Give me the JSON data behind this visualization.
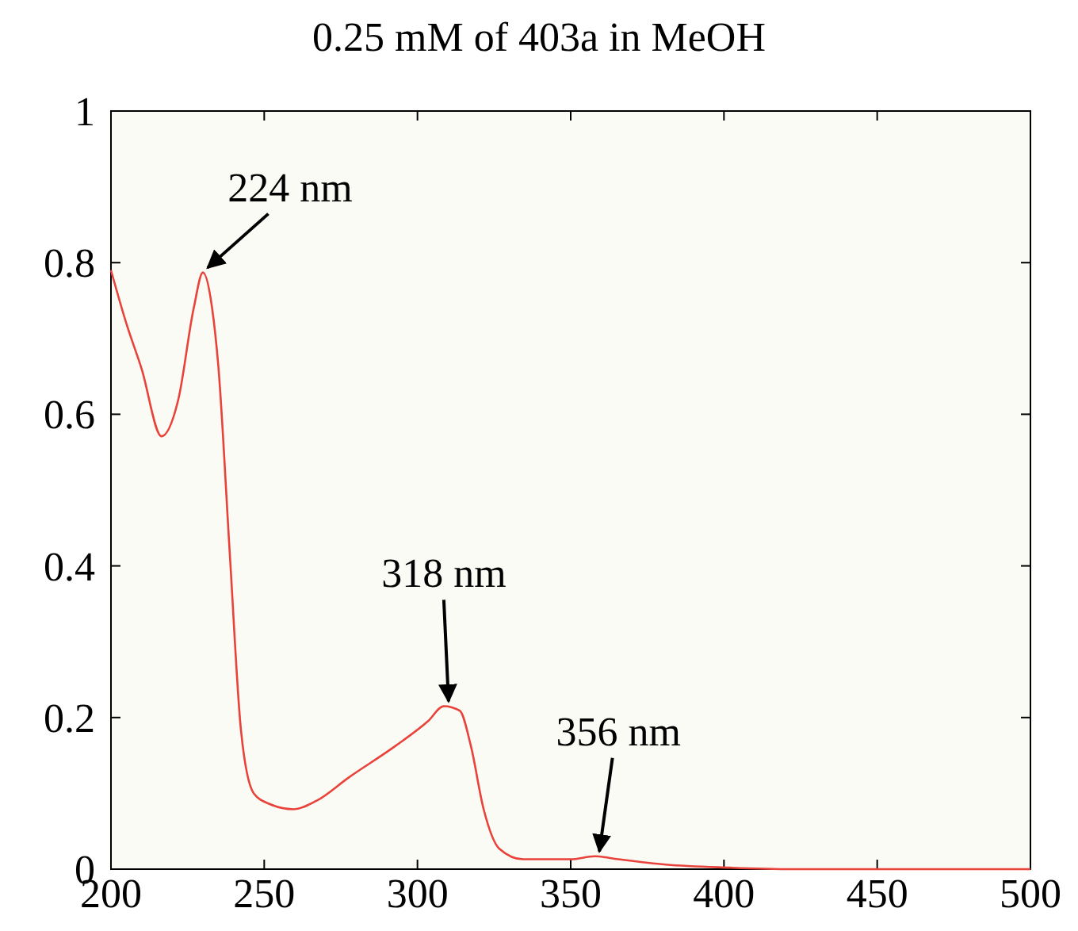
{
  "chart_data": {
    "type": "line",
    "title": "0.25 mM of 403a in MeOH",
    "x": [
      200,
      205,
      210,
      216.5,
      222,
      227,
      230,
      233,
      235,
      238.8,
      242.4,
      246.6,
      251.7,
      259.5,
      267,
      277.6,
      293,
      303.4,
      308.6,
      313.8,
      317.4,
      321.6,
      326.7,
      334.5,
      350,
      357.8,
      365.5,
      381,
      401.7,
      422,
      450,
      500
    ],
    "series": [
      {
        "color": "#e8423a",
        "values": [
          0.79,
          0.72,
          0.66,
          0.571,
          0.62,
          0.74,
          0.787,
          0.74,
          0.665,
          0.414,
          0.184,
          0.1,
          0.086,
          0.079,
          0.09,
          0.121,
          0.163,
          0.195,
          0.215,
          0.209,
          0.163,
          0.079,
          0.027,
          0.013,
          0.013,
          0.017,
          0.013,
          0.006,
          0.002,
          0,
          0,
          0
        ]
      }
    ],
    "xlim": [
      200,
      500
    ],
    "xticks": [
      200,
      250,
      300,
      350,
      400,
      450,
      500
    ],
    "ylim": [
      0,
      1
    ],
    "yticks": [
      0,
      0.2,
      0.4,
      0.6,
      0.8,
      1
    ],
    "annotations": [
      {
        "text": "224 nm",
        "x": 230,
        "y": 0.787
      },
      {
        "text": "318 nm",
        "x": 308.6,
        "y": 0.215
      },
      {
        "text": "356 nm",
        "x": 357.8,
        "y": 0.017
      }
    ],
    "grid": false,
    "line_style": "solid"
  }
}
